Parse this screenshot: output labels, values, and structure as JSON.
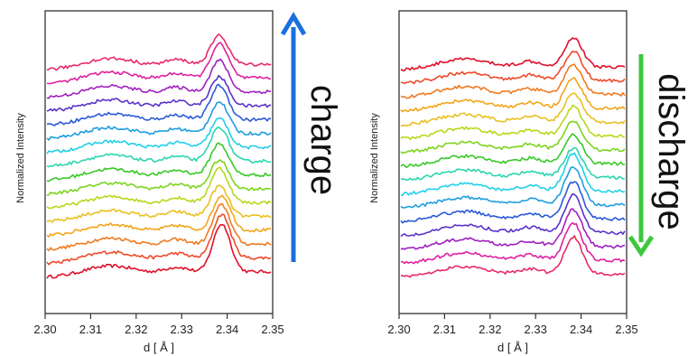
{
  "chart_data": [
    {
      "type": "line",
      "title": "",
      "xlabel": "d [ Å ]",
      "ylabel": "Normalized Intensity",
      "xlim": [
        2.3,
        2.35
      ],
      "xticks": [
        "2.30",
        "2.31",
        "2.32",
        "2.33",
        "2.34",
        "2.35"
      ],
      "annotation": "charge",
      "arrow_direction": "up",
      "arrow_color": "#1a6fe0",
      "series_colors_bottom_to_top": [
        "#e0102a",
        "#ef4a2a",
        "#f07a20",
        "#f2a51a",
        "#e8c020",
        "#b8d81a",
        "#7cd420",
        "#38c828",
        "#2bd6b0",
        "#20d0e8",
        "#1d9ee0",
        "#2a5ad8",
        "#5a32c8",
        "#a020c0",
        "#e020a0",
        "#e82a6a"
      ],
      "series": [
        {
          "x": [
            2.3,
            2.305,
            2.31,
            2.315,
            2.32,
            2.325,
            2.33,
            2.333,
            2.336,
            2.338,
            2.34,
            2.343,
            2.346,
            2.35
          ],
          "y": [
            0.1,
            0.12,
            0.14,
            0.16,
            0.17,
            0.19,
            0.26,
            0.34,
            0.52,
            0.7,
            0.68,
            0.48,
            0.34,
            0.28
          ]
        },
        {
          "x": [
            2.3,
            2.305,
            2.31,
            2.315,
            2.32,
            2.325,
            2.33,
            2.333,
            2.336,
            2.338,
            2.34,
            2.343,
            2.346,
            2.35
          ],
          "y": [
            0.14,
            0.16,
            0.2,
            0.22,
            0.24,
            0.26,
            0.34,
            0.4,
            0.55,
            0.68,
            0.64,
            0.46,
            0.38,
            0.32
          ]
        }
      ]
    },
    {
      "type": "line",
      "title": "",
      "xlabel": "d [ Å ]",
      "ylabel": "Normalized Intensity",
      "xlim": [
        2.3,
        2.35
      ],
      "xticks": [
        "2.30",
        "2.31",
        "2.32",
        "2.33",
        "2.34",
        "2.35"
      ],
      "annotation": "discharge",
      "arrow_direction": "down",
      "arrow_color": "#3cc83c",
      "series_colors_top_to_bottom": [
        "#e0102a",
        "#ef4a2a",
        "#f07a20",
        "#f2a51a",
        "#e8c020",
        "#b8d81a",
        "#7cd420",
        "#38c828",
        "#2bd6b0",
        "#20d0e8",
        "#1d9ee0",
        "#2a5ad8",
        "#5a32c8",
        "#a020c0",
        "#e020a0",
        "#e82a6a"
      ]
    }
  ]
}
